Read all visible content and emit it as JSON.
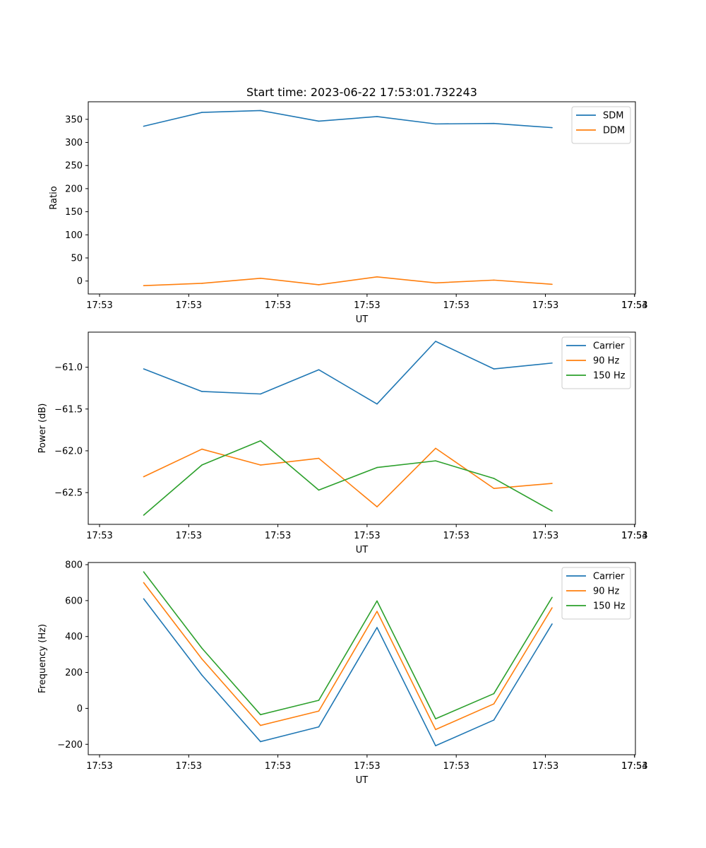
{
  "chart_data": [
    {
      "type": "line",
      "title": "Start time: 2023-06-22 17:53:01.732243",
      "xlabel": "UT",
      "ylabel": "Ratio",
      "x_tick_labels": [
        "17:53",
        "17:53",
        "17:53",
        "17:53",
        "17:53",
        "17:53",
        "17:53",
        "17:54"
      ],
      "y_ticks": [
        "0",
        "50",
        "100",
        "150",
        "200",
        "250",
        "300",
        "350"
      ],
      "ylim": [
        -28,
        388
      ],
      "grid": false,
      "legend_placement": "top-right",
      "series": [
        {
          "name": "SDM",
          "color": "#1f77b4",
          "values": [
            335,
            365,
            369,
            346,
            356,
            340,
            341,
            332
          ]
        },
        {
          "name": "DDM",
          "color": "#ff7f0e",
          "values": [
            -10,
            -5,
            6,
            -8,
            9,
            -4,
            2,
            -7
          ]
        }
      ]
    },
    {
      "type": "line",
      "title": "",
      "xlabel": "UT",
      "ylabel": "Power (dB)",
      "x_tick_labels": [
        "17:53",
        "17:53",
        "17:53",
        "17:53",
        "17:53",
        "17:53",
        "17:53",
        "17:54"
      ],
      "y_ticks": [
        "−62.5",
        "−62.0",
        "−61.5",
        "−61.0"
      ],
      "ylim": [
        -62.88,
        -60.58
      ],
      "grid": false,
      "legend_placement": "top-right",
      "series": [
        {
          "name": "Carrier",
          "color": "#1f77b4",
          "values": [
            -61.02,
            -61.29,
            -61.32,
            -61.03,
            -61.44,
            -60.69,
            -61.02,
            -60.95
          ]
        },
        {
          "name": "90 Hz",
          "color": "#ff7f0e",
          "values": [
            -62.31,
            -61.98,
            -62.17,
            -62.09,
            -62.67,
            -61.97,
            -62.45,
            -62.39
          ]
        },
        {
          "name": "150 Hz",
          "color": "#2ca02c",
          "values": [
            -62.77,
            -62.17,
            -61.88,
            -62.47,
            -62.2,
            -62.12,
            -62.33,
            -62.72
          ]
        }
      ]
    },
    {
      "type": "line",
      "title": "",
      "xlabel": "UT",
      "ylabel": "Frequency (Hz)",
      "x_tick_labels": [
        "17:53",
        "17:53",
        "17:53",
        "17:53",
        "17:53",
        "17:53",
        "17:53",
        "17:54"
      ],
      "y_ticks": [
        "−200",
        "0",
        "200",
        "400",
        "600",
        "800"
      ],
      "ylim": [
        -258,
        812
      ],
      "grid": false,
      "legend_placement": "top-right",
      "series": [
        {
          "name": "Carrier",
          "color": "#1f77b4",
          "values": [
            610,
            185,
            -185,
            -103,
            450,
            -208,
            -65,
            470
          ]
        },
        {
          "name": "90 Hz",
          "color": "#ff7f0e",
          "values": [
            700,
            275,
            -95,
            -15,
            540,
            -118,
            25,
            560
          ]
        },
        {
          "name": "150 Hz",
          "color": "#2ca02c",
          "values": [
            760,
            335,
            -35,
            45,
            598,
            -58,
            82,
            618
          ]
        }
      ]
    }
  ]
}
